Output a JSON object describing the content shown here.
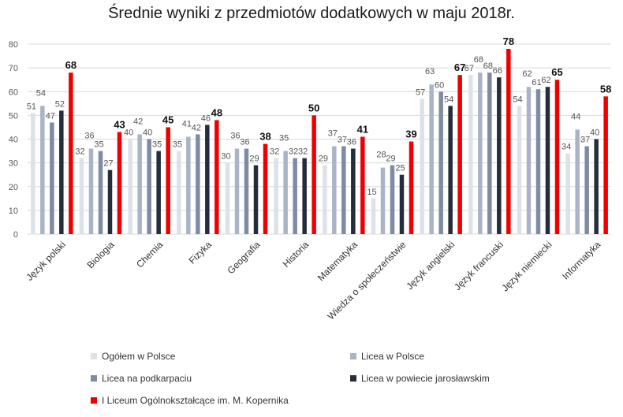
{
  "chart_data": {
    "type": "bar",
    "title": "Średnie wyniki z przedmiotów dodatkowych w maju 2018r.",
    "xlabel": "",
    "ylabel": "",
    "ylim": [
      0,
      80
    ],
    "yticks": [
      "0",
      "10",
      "20",
      "30",
      "40",
      "50",
      "60",
      "70",
      "80"
    ],
    "grid": true,
    "legend_placement": "bottom",
    "categories": [
      "Język polski",
      "Biologia",
      "Chemia",
      "Fizyka",
      "Geografia",
      "Historia",
      "Matematyka",
      "Wiedza o społeczeństwie",
      "Język angielski",
      "Język francuski",
      "Język niemiecki",
      "Informatyka"
    ],
    "series": [
      {
        "name": "Ogółem w Polsce",
        "color": "#dde1e8",
        "values": [
          51,
          32,
          40,
          35,
          30,
          32,
          29,
          15,
          57,
          67,
          54,
          34
        ]
      },
      {
        "name": "Licea w Polsce",
        "color": "#a9b4c6",
        "values": [
          54,
          36,
          42,
          41,
          36,
          35,
          37,
          28,
          63,
          68,
          62,
          44
        ]
      },
      {
        "name": "Licea na podkarpaciu",
        "color": "#7d8ba3",
        "values": [
          47,
          35,
          40,
          42,
          36,
          32,
          37,
          29,
          60,
          68,
          61,
          37
        ]
      },
      {
        "name": "Licea w powiecie jarosławskim",
        "color": "#232d3b",
        "values": [
          52,
          27,
          35,
          46,
          29,
          32,
          36,
          25,
          54,
          66,
          62,
          40
        ]
      },
      {
        "name": "I Liceum Ogólnokształcące im. M. Kopernika",
        "color": "#ee0000",
        "values": [
          68,
          43,
          45,
          48,
          38,
          50,
          41,
          39,
          67,
          78,
          65,
          58
        ]
      }
    ],
    "data_labels": [
      [
        "51",
        "54",
        "47",
        "52",
        "68"
      ],
      [
        "32",
        "36",
        "35",
        "27",
        "43"
      ],
      [
        "40",
        "42",
        "40",
        "35",
        "45"
      ],
      [
        "35",
        "41",
        "42",
        "46",
        "48"
      ],
      [
        "30",
        "36",
        "36",
        "29",
        "38"
      ],
      [
        "32",
        "35",
        "32",
        "32",
        "50"
      ],
      [
        "29",
        "37",
        "37",
        "36",
        "41"
      ],
      [
        "15",
        "28",
        "29",
        "25",
        "39"
      ],
      [
        "57",
        "63",
        "60",
        "54",
        "67"
      ],
      [
        "67",
        "68",
        "68",
        "66",
        "78"
      ],
      [
        "54",
        "62",
        "61",
        "62",
        "65"
      ],
      [
        "34",
        "44",
        "37",
        "40",
        "58"
      ]
    ]
  }
}
